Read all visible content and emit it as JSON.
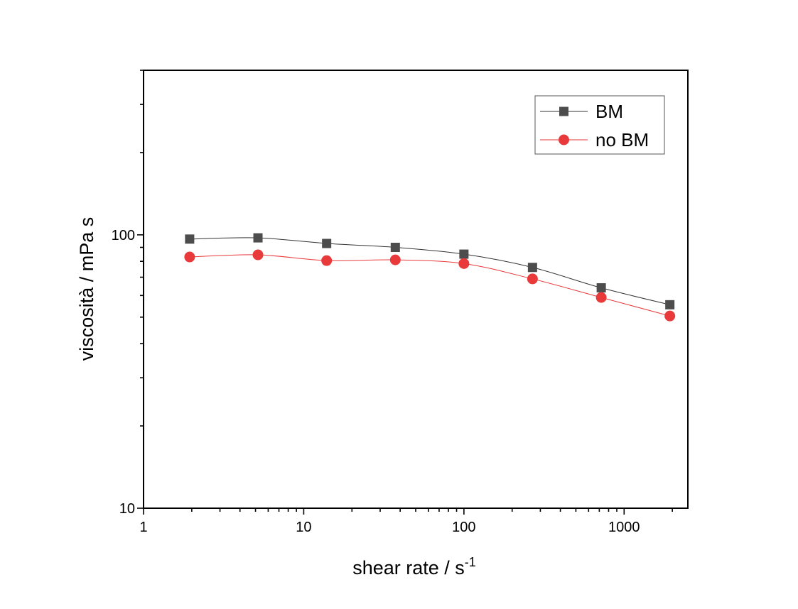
{
  "chart_data": {
    "type": "line",
    "xscale": "log",
    "yscale": "log",
    "xlim": [
      1,
      2500
    ],
    "ylim": [
      10,
      400
    ],
    "grid": false,
    "legend_position": "top-right",
    "xlabel": "shear rate / s",
    "xlabel_superscript": "-1",
    "ylabel": "viscosità / mPa s",
    "x_ticks": [
      {
        "value": 1,
        "label": "1"
      },
      {
        "value": 10,
        "label": "10"
      },
      {
        "value": 100,
        "label": "100"
      },
      {
        "value": 1000,
        "label": "1000"
      }
    ],
    "y_ticks": [
      {
        "value": 10,
        "label": "10"
      },
      {
        "value": 100,
        "label": "100"
      }
    ],
    "series": [
      {
        "name": "BM",
        "color": "#4d4d4d",
        "line_color": "#333333",
        "marker": "square",
        "x": [
          1.94,
          5.18,
          13.9,
          37.3,
          100,
          268,
          720,
          1930
        ],
        "y": [
          96.5,
          97.5,
          93.0,
          90.0,
          85.0,
          76.0,
          64.0,
          55.5
        ]
      },
      {
        "name": "no BM",
        "color": "#e8393b",
        "line_color": "#e8393b",
        "marker": "circle",
        "x": [
          1.94,
          5.18,
          13.9,
          37.3,
          100,
          268,
          720,
          1930
        ],
        "y": [
          83.0,
          84.5,
          80.5,
          81.0,
          78.5,
          69.0,
          59.0,
          50.5
        ]
      }
    ]
  }
}
